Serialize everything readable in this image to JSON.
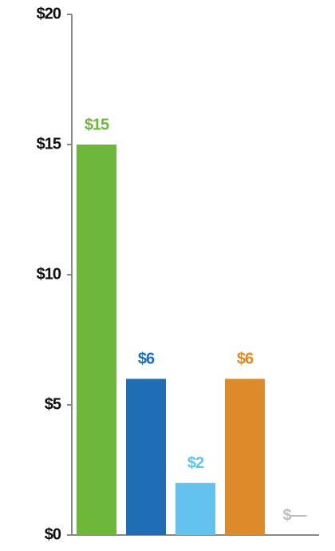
{
  "chart_data": {
    "type": "bar",
    "categories": [
      null,
      null,
      null,
      null,
      null
    ],
    "values": [
      15,
      6,
      2,
      6,
      0
    ],
    "value_labels": [
      "$15",
      "$6",
      "$2",
      "$6",
      "$—"
    ],
    "colors": [
      "#6db83a",
      "#1f6db5",
      "#63c2ee",
      "#dd8b2a",
      "#bfbfbf"
    ],
    "ylim": [
      0,
      20
    ],
    "yticks": [
      {
        "value": 0,
        "label": "$0"
      },
      {
        "value": 5,
        "label": "$5"
      },
      {
        "value": 10,
        "label": "$10"
      },
      {
        "value": 15,
        "label": "$15"
      },
      {
        "value": 20,
        "label": "$20"
      }
    ]
  }
}
